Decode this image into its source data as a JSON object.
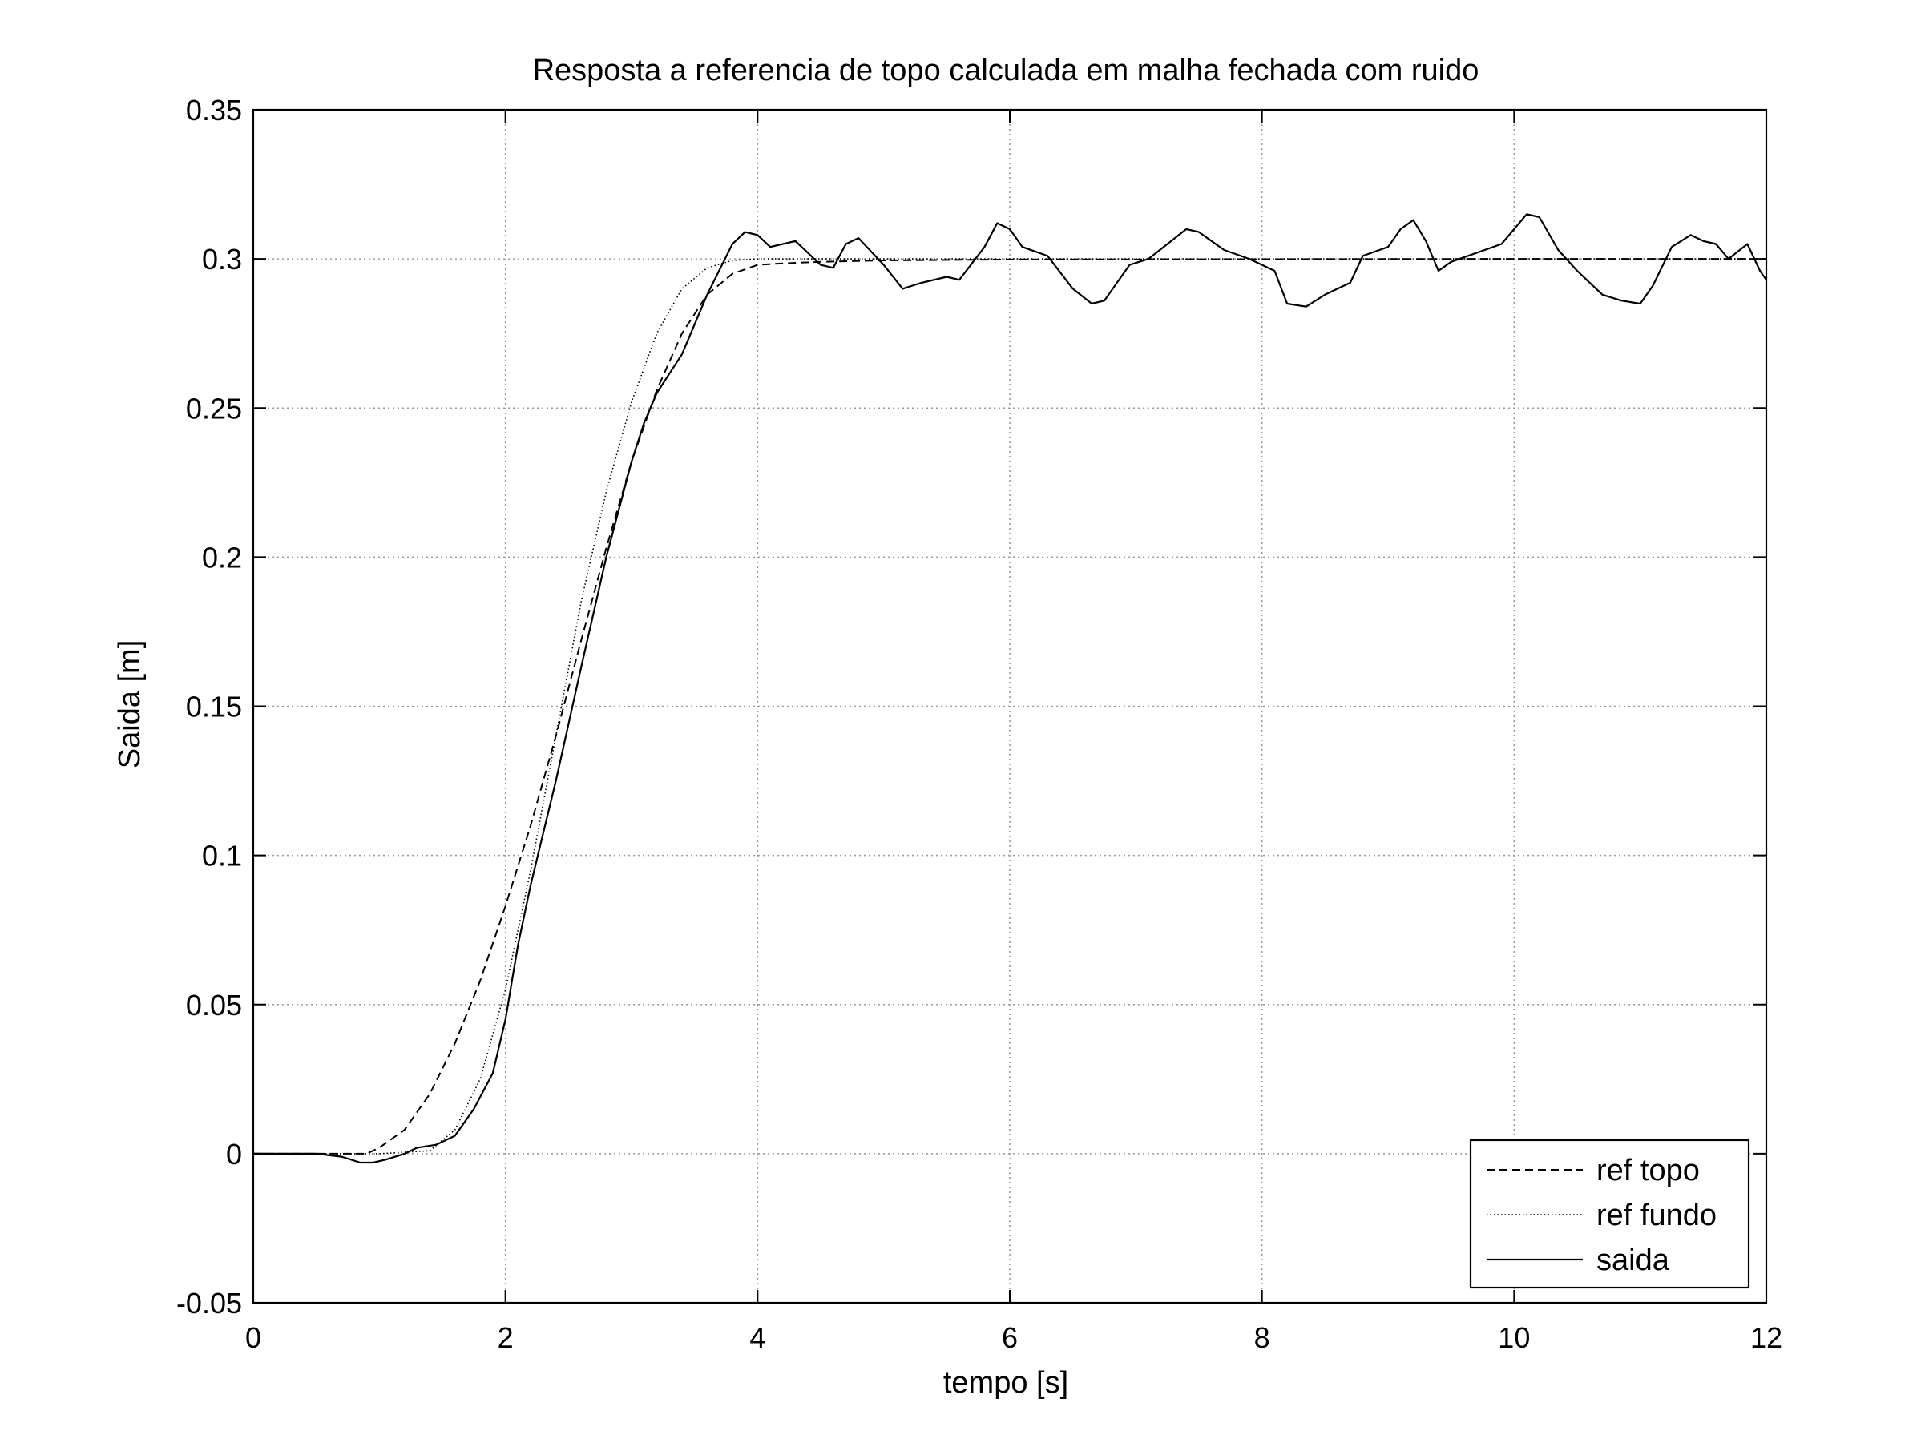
{
  "chart_data": {
    "type": "line",
    "title": "Resposta a referencia de topo calculada em malha fechada com ruido",
    "xlabel": "tempo [s]",
    "ylabel": "Saida [m]",
    "xlim": [
      0,
      12
    ],
    "ylim": [
      -0.05,
      0.35
    ],
    "xticks": [
      0,
      2,
      4,
      6,
      8,
      10,
      12
    ],
    "xtick_labels": [
      "0",
      "2",
      "4",
      "6",
      "8",
      "10",
      "12"
    ],
    "yticks": [
      -0.05,
      0,
      0.05,
      0.1,
      0.15,
      0.2,
      0.25,
      0.3,
      0.35
    ],
    "ytick_labels": [
      "-0.05",
      "0",
      "0.05",
      "0.1",
      "0.15",
      "0.2",
      "0.25",
      "0.3",
      "0.35"
    ],
    "grid": true,
    "legend_position": "bottom-right",
    "series": [
      {
        "name": "ref topo",
        "style": "dashed",
        "color": "#000000",
        "x": [
          0,
          0.5,
          0.9,
          1.0,
          1.2,
          1.4,
          1.6,
          1.8,
          2.0,
          2.2,
          2.4,
          2.6,
          2.8,
          3.0,
          3.2,
          3.4,
          3.6,
          3.8,
          4.0,
          4.2,
          4.5,
          5.0,
          6.0,
          8.0,
          10.0,
          12.0
        ],
        "y": [
          0,
          0,
          0,
          0.002,
          0.008,
          0.02,
          0.037,
          0.058,
          0.083,
          0.11,
          0.14,
          0.172,
          0.203,
          0.232,
          0.256,
          0.275,
          0.288,
          0.295,
          0.298,
          0.2985,
          0.299,
          0.2995,
          0.2998,
          0.2999,
          0.3,
          0.3
        ]
      },
      {
        "name": "ref fundo",
        "style": "dotted",
        "color": "#000000",
        "x": [
          0,
          0.5,
          1.0,
          1.4,
          1.6,
          1.8,
          2.0,
          2.2,
          2.4,
          2.6,
          2.8,
          3.0,
          3.2,
          3.4,
          3.6,
          3.8,
          4.0,
          4.3,
          5.0,
          8.0,
          12.0
        ],
        "y": [
          0,
          0,
          0,
          0.001,
          0.008,
          0.025,
          0.055,
          0.095,
          0.14,
          0.185,
          0.222,
          0.252,
          0.275,
          0.29,
          0.297,
          0.2995,
          0.3,
          0.3,
          0.3,
          0.3,
          0.3
        ]
      },
      {
        "name": "saida",
        "style": "solid",
        "color": "#000000",
        "x": [
          0,
          0.25,
          0.5,
          0.7,
          0.85,
          0.95,
          1.05,
          1.2,
          1.3,
          1.45,
          1.6,
          1.75,
          1.9,
          2.0,
          2.1,
          2.2,
          2.4,
          2.6,
          2.8,
          3.0,
          3.1,
          3.2,
          3.4,
          3.6,
          3.8,
          3.9,
          4.0,
          4.1,
          4.3,
          4.5,
          4.6,
          4.7,
          4.8,
          5.0,
          5.15,
          5.3,
          5.5,
          5.6,
          5.8,
          5.9,
          6.0,
          6.1,
          6.3,
          6.5,
          6.65,
          6.75,
          6.95,
          7.1,
          7.25,
          7.4,
          7.5,
          7.6,
          7.7,
          7.9,
          8.1,
          8.2,
          8.35,
          8.5,
          8.7,
          8.8,
          9.0,
          9.1,
          9.2,
          9.3,
          9.4,
          9.5,
          9.7,
          9.9,
          10.1,
          10.2,
          10.35,
          10.5,
          10.6,
          10.7,
          10.85,
          11.0,
          11.1,
          11.25,
          11.4,
          11.5,
          11.6,
          11.7,
          11.85,
          11.95,
          12.0
        ],
        "y": [
          0,
          0,
          0,
          -0.001,
          -0.003,
          -0.003,
          -0.002,
          0.0,
          0.002,
          0.003,
          0.006,
          0.015,
          0.027,
          0.045,
          0.07,
          0.09,
          0.125,
          0.163,
          0.2,
          0.232,
          0.245,
          0.255,
          0.268,
          0.288,
          0.305,
          0.309,
          0.308,
          0.304,
          0.306,
          0.298,
          0.297,
          0.305,
          0.307,
          0.298,
          0.29,
          0.292,
          0.294,
          0.293,
          0.304,
          0.312,
          0.31,
          0.304,
          0.301,
          0.29,
          0.285,
          0.286,
          0.298,
          0.3,
          0.305,
          0.31,
          0.309,
          0.306,
          0.303,
          0.3,
          0.296,
          0.285,
          0.284,
          0.288,
          0.292,
          0.301,
          0.304,
          0.31,
          0.313,
          0.306,
          0.296,
          0.299,
          0.302,
          0.305,
          0.315,
          0.314,
          0.303,
          0.296,
          0.292,
          0.288,
          0.286,
          0.285,
          0.291,
          0.304,
          0.308,
          0.306,
          0.305,
          0.3,
          0.305,
          0.296,
          0.293
        ]
      }
    ]
  }
}
